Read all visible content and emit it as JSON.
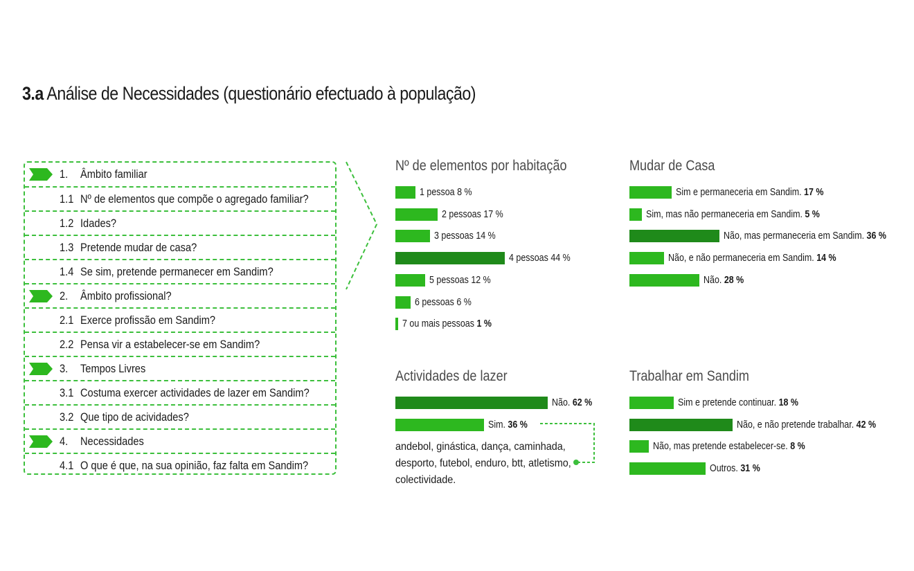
{
  "title": {
    "prefix": "3.a",
    "text": "Análise de Necessidades (questionário efectuado à população)"
  },
  "questionnaire": [
    {
      "num": "1.",
      "text": "Âmbito familiar",
      "section": true
    },
    {
      "num": "1.1",
      "text": "Nº de elementos que compõe o agregado familiar?",
      "section": false
    },
    {
      "num": "1.2",
      "text": "Idades?",
      "section": false
    },
    {
      "num": "1.3",
      "text": "Pretende mudar de casa?",
      "section": false
    },
    {
      "num": "1.4",
      "text": "Se  sim, pretende permanecer em Sandim?",
      "section": false
    },
    {
      "num": "2.",
      "text": "Âmbito profissional?",
      "section": true
    },
    {
      "num": "2.1",
      "text": "Exerce profissão em Sandim?",
      "section": false
    },
    {
      "num": "2.2",
      "text": "Pensa vir a estabelecer-se em Sandim?",
      "section": false
    },
    {
      "num": "3.",
      "text": "Tempos Livres",
      "section": true
    },
    {
      "num": "3.1",
      "text": "Costuma exercer actividades de lazer em Sandim?",
      "section": false
    },
    {
      "num": "3.2",
      "text": "Que tipo de acividades?",
      "section": false
    },
    {
      "num": "4.",
      "text": "Necessidades",
      "section": true
    },
    {
      "num": "4.1",
      "text": "O que é que, na sua opinião, faz falta em Sandim?",
      "section": false
    }
  ],
  "colors": {
    "light": "#2db81f",
    "dark": "#1f8a1a",
    "dash": "#3cbf3c"
  },
  "chart_data": [
    {
      "type": "bar",
      "title": "Nº de elementos por habitação",
      "unit": "%",
      "categories": [
        "1 pessoa",
        "2 pessoas",
        "3 pessoas",
        "4 pessoas",
        "5 pessoas",
        "6 pessoas",
        "7 ou mais pessoas"
      ],
      "values": [
        8,
        17,
        14,
        44,
        12,
        6,
        1
      ],
      "highlight": [
        false,
        false,
        false,
        true,
        false,
        false,
        false
      ],
      "bold_values": [
        false,
        false,
        false,
        false,
        false,
        false,
        true
      ]
    },
    {
      "type": "bar",
      "title": "Mudar de Casa",
      "unit": "%",
      "categories": [
        "Sim e permaneceria em Sandim.",
        "Sim, mas não permaneceria em Sandim.",
        "Não, mas permaneceria em Sandim.",
        "Não, e não permaneceria em Sandim.",
        "Não."
      ],
      "values": [
        17,
        5,
        36,
        14,
        28
      ],
      "highlight": [
        false,
        false,
        true,
        false,
        false
      ],
      "bold_values": [
        true,
        true,
        true,
        true,
        true
      ]
    },
    {
      "type": "bar",
      "title": "Actividades de lazer",
      "unit": "%",
      "categories": [
        "Não.",
        "Sim."
      ],
      "values": [
        62,
        36
      ],
      "highlight": [
        true,
        false
      ],
      "bold_values": [
        true,
        true
      ],
      "note": "andebol, ginástica, dança, caminhada, desporto, futebol, enduro, btt, atletismo, colectividade."
    },
    {
      "type": "bar",
      "title": "Trabalhar em Sandim",
      "unit": "%",
      "categories": [
        "Sim e pretende continuar.",
        "Não, e não pretende trabalhar.",
        "Não, mas pretende estabelecer-se.",
        "Outros."
      ],
      "values": [
        18,
        42,
        8,
        31
      ],
      "highlight": [
        false,
        true,
        false,
        false
      ],
      "bold_values": [
        true,
        true,
        true,
        true
      ]
    }
  ]
}
